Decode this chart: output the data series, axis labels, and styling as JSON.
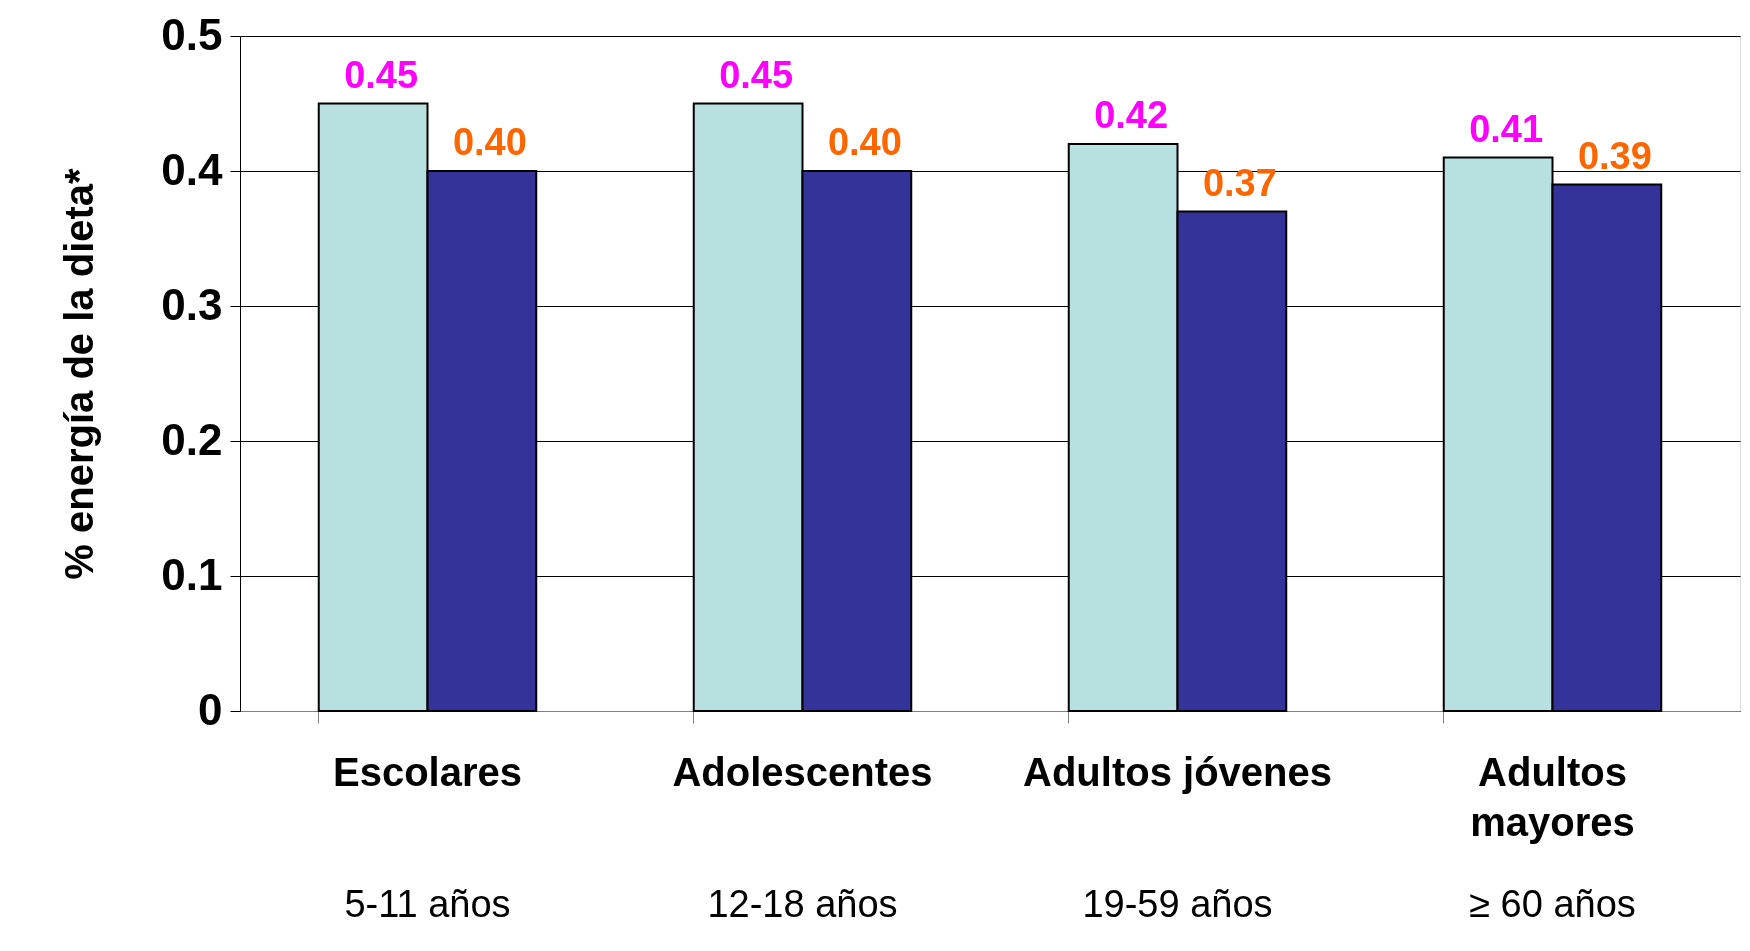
{
  "chart_data": {
    "type": "bar",
    "ylabel": "% energía de la dieta*",
    "categories": [
      "Escolares",
      "Adolescentes",
      "Adultos jóvenes",
      "Adultos mayores"
    ],
    "series": [
      {
        "color": "#b8e0e0",
        "values": [
          0.45,
          0.45,
          0.42,
          0.41
        ],
        "value_labels": [
          "0.45",
          "0.45",
          "0.42",
          "0.41"
        ]
      },
      {
        "color": "#333399",
        "values": [
          0.4,
          0.4,
          0.37,
          0.39
        ],
        "value_labels": [
          "0.40",
          "0.40",
          "0.37",
          "0.39"
        ]
      }
    ],
    "ylim": [
      0,
      0.5
    ],
    "yticks": [
      0,
      0.1,
      0.2,
      0.3,
      0.4,
      0.5
    ],
    "grid": "y",
    "annotations": [
      "5-11 años",
      "12-18 años",
      "19-59 años",
      "≥ 60 años"
    ]
  }
}
